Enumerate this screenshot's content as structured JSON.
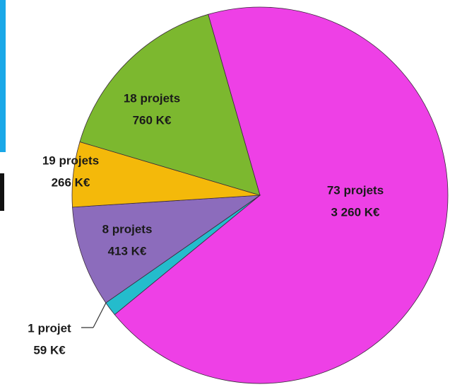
{
  "chart_data": {
    "type": "pie",
    "values": [
      3260,
      59,
      413,
      266,
      760
    ],
    "value_labels": [
      "3 260 K€",
      "59 K€",
      "413 K€",
      "266 K€",
      "760 K€"
    ],
    "project_labels": [
      "73 projets",
      "1 projet",
      "8 projets",
      "19 projets",
      "18 projets"
    ],
    "colors": [
      "#ee40e6",
      "#24bccc",
      "#8c6cbc",
      "#f4b90a",
      "#7cb82f"
    ]
  }
}
